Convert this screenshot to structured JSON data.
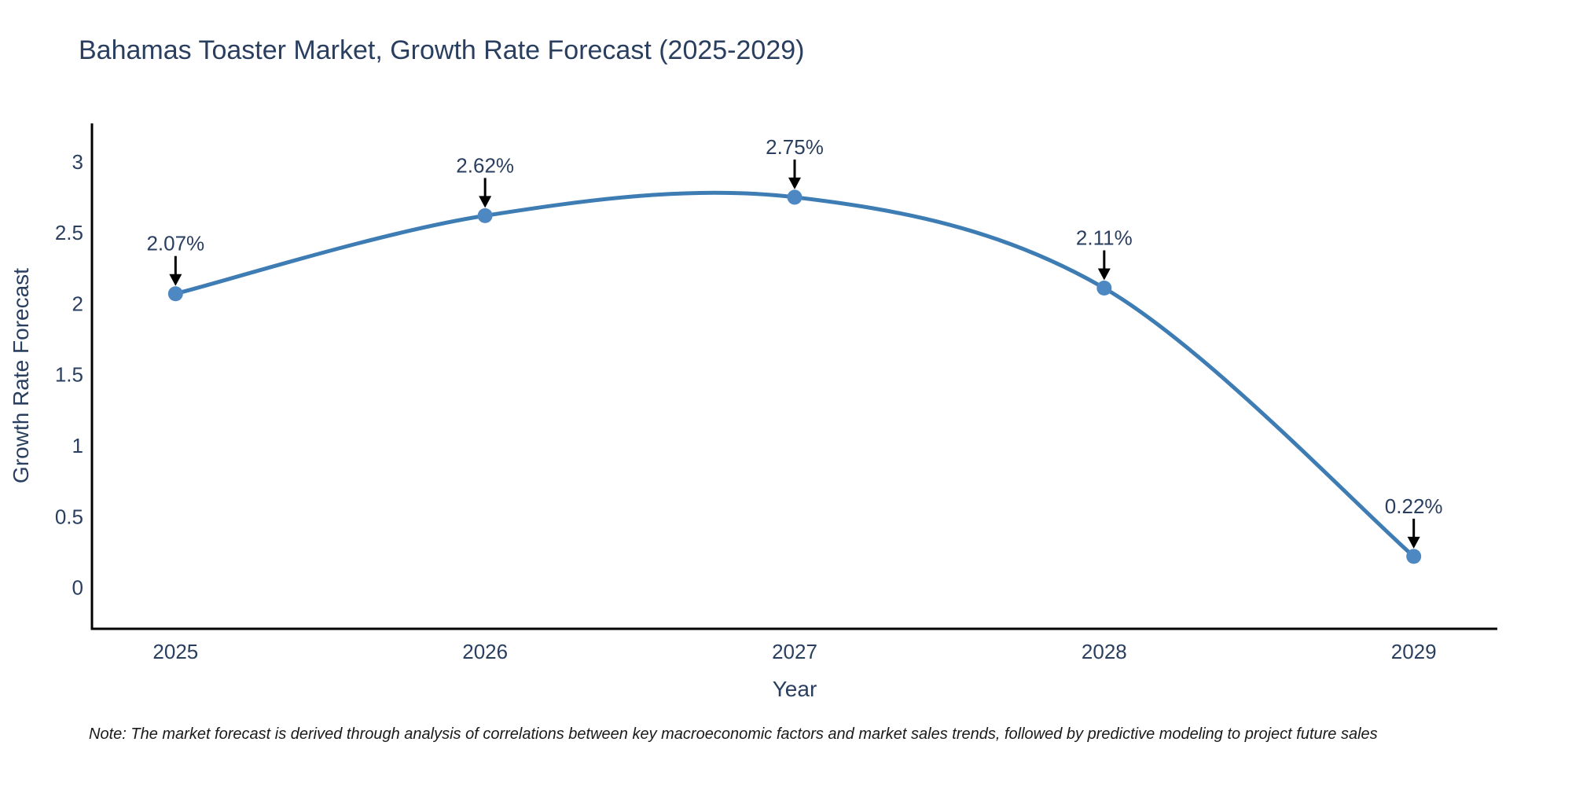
{
  "title": "Bahamas Toaster Market, Growth Rate Forecast (2025-2029)",
  "note": "Note: The market forecast is derived through analysis of correlations between key macroeconomic factors and market sales trends, followed by predictive modeling to project future sales",
  "chart_data": {
    "type": "line",
    "line_shape": "spline",
    "title": "Bahamas Toaster Market, Growth Rate Forecast (2025-2029)",
    "xlabel": "Year",
    "ylabel": "Growth Rate Forecast",
    "x": [
      2025,
      2026,
      2027,
      2028,
      2029
    ],
    "values": [
      2.07,
      2.62,
      2.75,
      2.11,
      0.22
    ],
    "point_labels": [
      "2.07%",
      "2.62%",
      "2.75%",
      "2.11%",
      "0.22%"
    ],
    "xtick_labels": [
      "2025",
      "2026",
      "2027",
      "2028",
      "2029"
    ],
    "yticks": [
      0,
      0.5,
      1,
      1.5,
      2,
      2.5,
      3
    ],
    "ytick_labels": [
      "0",
      "0.5",
      "1",
      "1.5",
      "2",
      "2.5",
      "3"
    ],
    "xlim": [
      2024.73,
      2029.27
    ],
    "ylim": [
      -0.29,
      3.27
    ],
    "grid": false,
    "legend": "none",
    "colors": {
      "line": "#3e7cb4",
      "marker": "#4e88c3",
      "arrow": "#000000",
      "axis": "#000000",
      "text": "#2a3f5f"
    }
  }
}
